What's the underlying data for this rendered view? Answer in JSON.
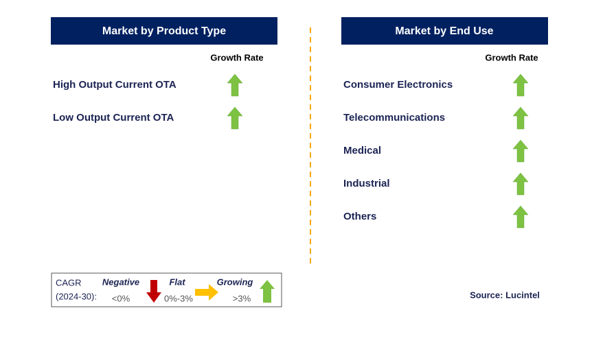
{
  "left": {
    "title": "Market by Product Type",
    "column_header": "Growth Rate",
    "rows": [
      "High Output Current OTA",
      "Low Output Current OTA"
    ]
  },
  "right": {
    "title": "Market by End Use",
    "column_header": "Growth Rate",
    "rows": [
      "Consumer Electronics",
      "Telecommunications",
      "Medical",
      "Industrial",
      "Others"
    ]
  },
  "legend": {
    "label_line1": "CAGR",
    "label_line2": "(2024-30):",
    "items": [
      {
        "name": "Negative",
        "range": "<0%"
      },
      {
        "name": "Flat",
        "range": "0%-3%"
      },
      {
        "name": "Growing",
        "range": ">3%"
      }
    ]
  },
  "source": "Source: Lucintel"
}
